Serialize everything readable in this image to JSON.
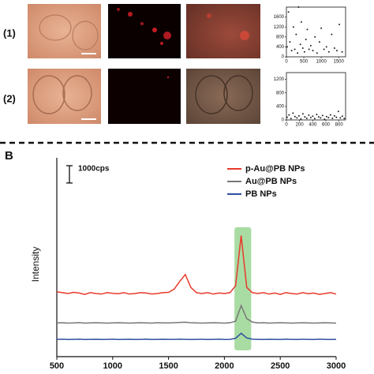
{
  "row_labels": [
    "(1)",
    "(2)"
  ],
  "panel_labels": {
    "b": "B"
  },
  "chart_data": [
    {
      "type": "scatter",
      "xlim": [
        0,
        1700
      ],
      "ylim": [
        0,
        2000
      ],
      "xticks": [
        0,
        500,
        1000,
        1500
      ],
      "yticks": [
        0,
        400,
        800,
        1200,
        1600
      ],
      "color": "#222222",
      "x": [
        20,
        60,
        100,
        150,
        200,
        240,
        280,
        320,
        350,
        400,
        430,
        470,
        520,
        560,
        600,
        650,
        700,
        760,
        820,
        880,
        950,
        1000,
        1080,
        1150,
        1220,
        1300,
        1380,
        1450,
        1520,
        1600
      ],
      "y": [
        400,
        1800,
        600,
        250,
        1200,
        300,
        900,
        150,
        2000,
        500,
        1400,
        350,
        200,
        700,
        1100,
        300,
        450,
        250,
        800,
        150,
        600,
        1150,
        300,
        400,
        200,
        900,
        350,
        250,
        1300,
        200
      ]
    },
    {
      "type": "scatter",
      "xlim": [
        0,
        900
      ],
      "ylim": [
        0,
        1400
      ],
      "xticks": [
        0,
        200,
        400,
        600,
        800
      ],
      "yticks": [
        0,
        400,
        800,
        1200
      ],
      "color": "#222222",
      "x": [
        10,
        40,
        70,
        100,
        130,
        160,
        190,
        220,
        250,
        280,
        310,
        340,
        370,
        400,
        430,
        460,
        490,
        520,
        550,
        580,
        610,
        640,
        670,
        700,
        730,
        760,
        790,
        820,
        850,
        880
      ],
      "y": [
        80,
        150,
        40,
        200,
        100,
        60,
        120,
        30,
        180,
        90,
        50,
        140,
        70,
        110,
        40,
        160,
        90,
        60,
        130,
        20,
        100,
        70,
        150,
        50,
        120,
        80,
        250,
        60,
        110,
        40
      ]
    },
    {
      "type": "line",
      "ylabel": "Intensity",
      "xlim": [
        500,
        3000
      ],
      "xticks": [
        500,
        1000,
        1500,
        2000,
        2500,
        3000
      ],
      "ylim": [
        0,
        11500
      ],
      "scale_bar": {
        "label": "1000cps",
        "value": 1000
      },
      "highlight": {
        "x": [
          2090,
          2240
        ],
        "color": "#a9dca3"
      },
      "x": [
        500,
        550,
        600,
        650,
        700,
        750,
        800,
        850,
        900,
        950,
        1000,
        1050,
        1100,
        1150,
        1200,
        1250,
        1300,
        1350,
        1400,
        1450,
        1500,
        1550,
        1600,
        1650,
        1700,
        1750,
        1800,
        1850,
        1900,
        1950,
        2000,
        2050,
        2100,
        2150,
        2200,
        2250,
        2300,
        2350,
        2400,
        2450,
        2500,
        2550,
        2600,
        2650,
        2700,
        2750,
        2800,
        2850,
        2900,
        2950,
        3000
      ],
      "series": [
        {
          "name": "p-Au@PB NPs",
          "color": "#e8392b",
          "values": [
            3750,
            3700,
            3650,
            3720,
            3680,
            3600,
            3700,
            3650,
            3620,
            3700,
            3660,
            3640,
            3700,
            3620,
            3650,
            3700,
            3680,
            3620,
            3650,
            3700,
            3720,
            3900,
            4350,
            4750,
            4000,
            3700,
            3650,
            3700,
            3620,
            3680,
            3650,
            3700,
            4100,
            7000,
            4000,
            3700,
            3650,
            3700,
            3620,
            3680,
            3600,
            3700,
            3650,
            3620,
            3700,
            3640,
            3680,
            3600,
            3650,
            3700,
            3620
          ]
        },
        {
          "name": "Au@PB NPs",
          "color": "#777777",
          "values": [
            1950,
            1960,
            1940,
            1950,
            1970,
            1940,
            1950,
            1960,
            1950,
            1940,
            1950,
            1960,
            1950,
            1940,
            1950,
            1960,
            1950,
            1940,
            1960,
            1950,
            1950,
            1960,
            1980,
            1990,
            1960,
            1950,
            1940,
            1950,
            1960,
            1950,
            1940,
            1960,
            2050,
            2950,
            2200,
            2000,
            1950,
            1960,
            1940,
            1950,
            1960,
            1950,
            1940,
            1950,
            1960,
            1950,
            1940,
            1950,
            1960,
            1950,
            1940
          ]
        },
        {
          "name": "PB NPs",
          "color": "#2f4fa0",
          "values": [
            1000,
            1010,
            990,
            1000,
            1010,
            990,
            1000,
            1005,
            995,
            1000,
            1010,
            990,
            1000,
            1005,
            995,
            1000,
            1010,
            990,
            1000,
            1005,
            1000,
            1000,
            1010,
            1000,
            995,
            1000,
            1005,
            995,
            1000,
            1010,
            990,
            1000,
            1060,
            1350,
            1080,
            1010,
            1000,
            995,
            1005,
            1000,
            990,
            1010,
            1000,
            995,
            1005,
            1000,
            990,
            1010,
            1000,
            995,
            1000
          ]
        }
      ]
    }
  ]
}
